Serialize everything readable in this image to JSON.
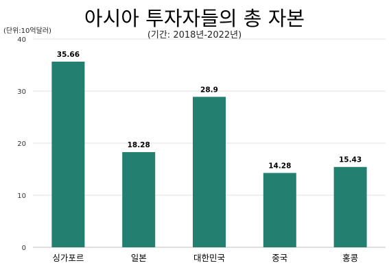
{
  "chart_data": {
    "type": "bar",
    "title": "아시아 투자자들의 총 자본",
    "subtitle": "(기간: 2018년-2022년)",
    "unit_label": "(단위:10억달러)",
    "categories": [
      "싱가포르",
      "일본",
      "대한민국",
      "중국",
      "홍콩"
    ],
    "values": [
      35.66,
      18.28,
      28.9,
      14.28,
      15.43
    ],
    "value_labels": [
      "35.66",
      "18.28",
      "28.9",
      "14.28",
      "15.43"
    ],
    "ylim": [
      0,
      40
    ],
    "yticks": [
      0,
      10,
      20,
      30,
      40
    ],
    "grid": true,
    "bar_color": "#237f6f",
    "grid_color": "#e0e0e0",
    "xlabel": "",
    "ylabel": ""
  }
}
